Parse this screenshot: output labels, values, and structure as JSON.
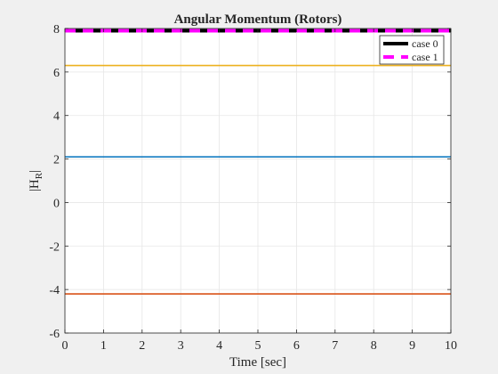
{
  "chart_data": {
    "type": "line",
    "title": "Angular Momentum (Rotors)",
    "xlabel": "Time [sec]",
    "ylabel_main": "|H",
    "ylabel_sub": "R",
    "ylabel_tail": "|",
    "xlim": [
      0,
      10
    ],
    "ylim": [
      -6,
      8
    ],
    "xticks": [
      0,
      1,
      2,
      3,
      4,
      5,
      6,
      7,
      8,
      9,
      10
    ],
    "yticks": [
      -6,
      -4,
      -2,
      0,
      2,
      4,
      6,
      8
    ],
    "grid": true,
    "legend_position": "top-right",
    "series": [
      {
        "name": "",
        "color": "#EDB120",
        "style": "solid",
        "x": [
          0,
          10
        ],
        "y": [
          6.3,
          6.3
        ]
      },
      {
        "name": "",
        "color": "#0072BD",
        "style": "solid",
        "x": [
          0,
          10
        ],
        "y": [
          2.1,
          2.1
        ]
      },
      {
        "name": "",
        "color": "#D95319",
        "style": "solid",
        "x": [
          0,
          10
        ],
        "y": [
          -4.2,
          -4.2
        ]
      },
      {
        "name": "case 0",
        "color": "#000000",
        "style": "solid",
        "x": [
          0,
          10
        ],
        "y": [
          7.9,
          7.9
        ]
      },
      {
        "name": "case 1",
        "color": "#FF00FF",
        "style": "dashed",
        "x": [
          0,
          10
        ],
        "y": [
          7.9,
          7.9
        ]
      }
    ],
    "legend": [
      {
        "label": "case 0",
        "color": "#000000",
        "style": "solid"
      },
      {
        "label": "case 1",
        "color": "#FF00FF",
        "style": "dashed"
      }
    ]
  }
}
